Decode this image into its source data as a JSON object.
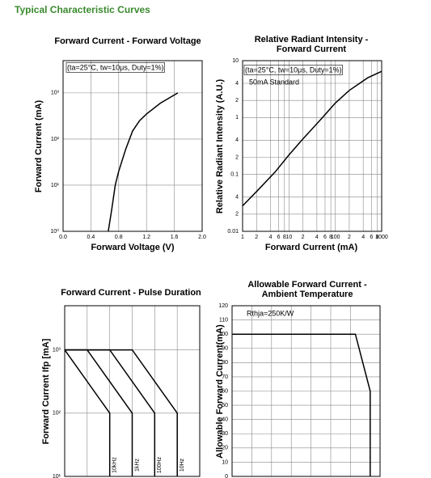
{
  "title": "Typical Characteristic Curves",
  "chart_data": [
    {
      "type": "line",
      "title": [
        "Forward Current - Forward Voltage"
      ],
      "x_label": "Forward Voltage (V)",
      "y_label": "Forward Current (mA)",
      "annotations": [
        "(ta=25°C, tw=10μs, Duty=1%)"
      ],
      "xlim": [
        0,
        2
      ],
      "xticks": [
        {
          "value": 0,
          "label": "0.0"
        },
        0.4,
        0.8,
        1.2,
        1.6,
        {
          "value": 2,
          "label": "2.0"
        }
      ],
      "ylim": [
        1,
        5000
      ],
      "yscale": "log",
      "yticks": [
        {
          "value": 1,
          "label": "10⁰"
        },
        {
          "value": 10,
          "label": "10¹"
        },
        {
          "value": 100,
          "label": "10²"
        },
        {
          "value": 1000,
          "label": "10³"
        }
      ],
      "grid": true,
      "series": [
        {
          "color": "#000000",
          "x": [
            0.65,
            0.7,
            0.75,
            0.8,
            0.9,
            1.0,
            1.1,
            1.2,
            1.4,
            1.65
          ],
          "values": [
            1,
            3,
            10,
            20,
            60,
            150,
            250,
            350,
            600,
            1000
          ]
        }
      ]
    },
    {
      "type": "line",
      "title": [
        "Relative Radiant Intensity -",
        "Forward Current"
      ],
      "x_label": "Forward Current (mA)",
      "y_label": "Relative Radiant Intensity (A.U.)",
      "annotations": [
        "(ta=25°C, tw=10μs, Duty=1%)",
        "50mA Standard"
      ],
      "xlim": [
        1,
        1000
      ],
      "xscale": "log",
      "xticks": [
        1,
        {
          "value": 2,
          "label": "2"
        },
        {
          "value": 4,
          "label": "4"
        },
        {
          "value": 6,
          "label": "6"
        },
        {
          "value": 8,
          "label": "8"
        },
        10,
        {
          "value": 20,
          "label": "2"
        },
        {
          "value": 40,
          "label": "4"
        },
        {
          "value": 60,
          "label": "6"
        },
        {
          "value": 80,
          "label": "8"
        },
        100,
        {
          "value": 200,
          "label": "2"
        },
        {
          "value": 400,
          "label": "4"
        },
        {
          "value": 600,
          "label": "6"
        },
        {
          "value": 800,
          "label": "8"
        },
        1000
      ],
      "ylim": [
        0.01,
        10
      ],
      "yscale": "log",
      "yticks": [
        0.01,
        {
          "value": 0.02,
          "label": "2"
        },
        {
          "value": 0.04,
          "label": "4"
        },
        0.1,
        {
          "value": 0.2,
          "label": "2"
        },
        {
          "value": 0.4,
          "label": "4"
        },
        1,
        {
          "value": 2,
          "label": "2"
        },
        {
          "value": 4,
          "label": "4"
        },
        10
      ],
      "grid": true,
      "series": [
        {
          "color": "#000000",
          "x": [
            1,
            2,
            5,
            10,
            20,
            50,
            100,
            200,
            500,
            1000
          ],
          "values": [
            0.028,
            0.05,
            0.11,
            0.22,
            0.42,
            0.95,
            1.8,
            3,
            5,
            6.5
          ]
        }
      ]
    },
    {
      "type": "line",
      "title": [
        "Forward Current - Pulse Duration"
      ],
      "y_label": "Forward Current Ifp [mA]",
      "xlim": [
        0,
        6
      ],
      "xgrid": [
        1,
        2,
        3,
        4,
        5
      ],
      "ylim": [
        10,
        5000
      ],
      "yscale": "log",
      "yticks": [
        {
          "value": 10,
          "label": "10¹"
        },
        {
          "value": 100,
          "label": "10²"
        },
        {
          "value": 1000,
          "label": "10³"
        }
      ],
      "grid": true,
      "series": [
        {
          "name": "10kHz",
          "color": "#000000",
          "x": [
            0,
            2,
            2
          ],
          "values": [
            1000,
            100,
            10
          ]
        },
        {
          "name": "1kHz",
          "color": "#000000",
          "x": [
            0,
            1,
            3,
            3
          ],
          "values": [
            1000,
            1000,
            100,
            10
          ]
        },
        {
          "name": "100Hz",
          "color": "#000000",
          "x": [
            0,
            2,
            4,
            4
          ],
          "values": [
            1000,
            1000,
            100,
            10
          ]
        },
        {
          "name": "10Hz",
          "color": "#000000",
          "x": [
            0,
            3,
            5,
            5
          ],
          "values": [
            1000,
            1000,
            100,
            10
          ]
        }
      ]
    },
    {
      "type": "line",
      "title": [
        "Allowable Forward Current -",
        "Ambient Temperature"
      ],
      "y_label": "Allowable Forward Current(mA)",
      "annotations": [
        "Rthja=250K/W"
      ],
      "xlim": [
        -40,
        110
      ],
      "xgrid": [
        -20,
        0,
        20,
        40,
        60,
        80
      ],
      "ylim": [
        0,
        120
      ],
      "yticks": [
        0,
        10,
        20,
        30,
        40,
        50,
        60,
        70,
        80,
        90,
        100,
        110,
        120
      ],
      "grid": true,
      "series": [
        {
          "color": "#000000",
          "x": [
            -40,
            85,
            100,
            100
          ],
          "values": [
            100,
            100,
            60,
            0
          ]
        }
      ]
    }
  ]
}
